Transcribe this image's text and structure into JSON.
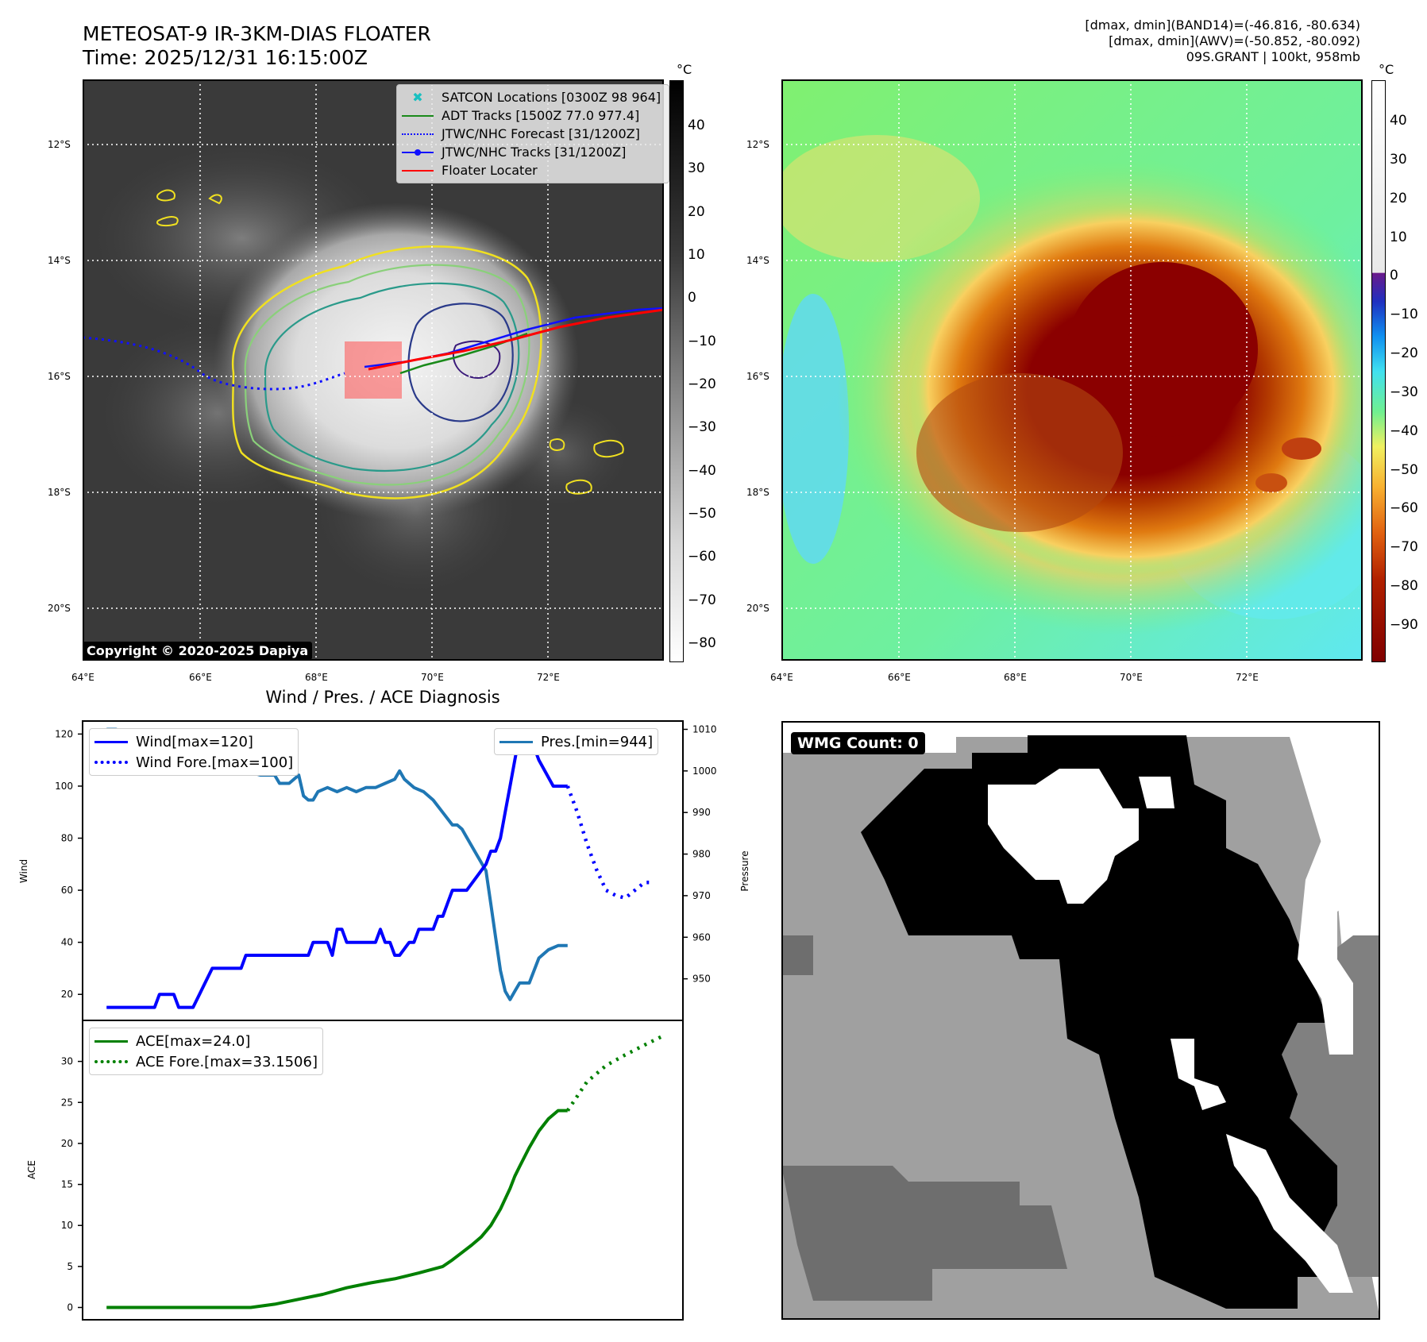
{
  "header": {
    "title_line1": "METEOSAT-9 IR-3KM-DIAS FLOATER",
    "title_line2": "Time: 2025/12/31 16:15:00Z",
    "info_line1": "[dmax, dmin](BAND14)=(-46.816, -80.634)",
    "info_line2": "[dmax, dmin](AWV)=(-50.852, -80.092)",
    "info_line3": "09S.GRANT | 100kt, 958mb"
  },
  "map_axes": {
    "lat_labels": [
      "12°S",
      "14°S",
      "16°S",
      "18°S",
      "20°S"
    ],
    "lon_labels": [
      "64°E",
      "66°E",
      "68°E",
      "70°E",
      "72°E"
    ]
  },
  "ir_panel": {
    "colorbar_unit": "°C",
    "colorbar_ticks": [
      "40",
      "30",
      "20",
      "10",
      "0",
      "−10",
      "−20",
      "−30",
      "−40",
      "−50",
      "−60",
      "−70",
      "−80"
    ],
    "legend": [
      {
        "label": "SATCON Locations [0300Z 98 964]",
        "color": "#19c0c0"
      },
      {
        "label": "ADT Tracks [1500Z 77.0 977.4]",
        "color": "#1a8a1a"
      },
      {
        "label": "JTWC/NHC Forecast [31/1200Z]",
        "color": "#1010ff"
      },
      {
        "label": "JTWC/NHC Tracks [31/1200Z]",
        "color": "#1010ff"
      },
      {
        "label": "Floater Locater",
        "color": "#ff0000"
      }
    ],
    "copyright": "Copyright © 2020-2025 Dapiya"
  },
  "color_panel": {
    "colorbar_unit": "°C",
    "colorbar_ticks": [
      "40",
      "30",
      "20",
      "10",
      "0",
      "−10",
      "−20",
      "−30",
      "−40",
      "−50",
      "−60",
      "−70",
      "−80",
      "−90"
    ]
  },
  "wmg": {
    "badge": "WMG Count: 0"
  },
  "chart_data": [
    {
      "type": "line",
      "title": "Wind / Pres. / ACE Diagnosis",
      "ylabel": "Wind",
      "ylabel_right": "Pressure",
      "ylim": [
        10,
        125
      ],
      "ylim_right": [
        940,
        1012
      ],
      "yticks": [
        "20",
        "40",
        "60",
        "80",
        "100",
        "120"
      ],
      "yticks_right": [
        "950",
        "960",
        "970",
        "980",
        "990",
        "1000",
        "1010"
      ],
      "series": [
        {
          "name": "Wind[max=120]",
          "color": "#0000ff",
          "style": "solid",
          "x": [
            0,
            5,
            10,
            11,
            14,
            15,
            17,
            18,
            22,
            23,
            28,
            29,
            36,
            37,
            42,
            43,
            46,
            47,
            48,
            49,
            50,
            51,
            56,
            57,
            58,
            59,
            60,
            61,
            63,
            64,
            65,
            66,
            68,
            69,
            70,
            71,
            72,
            73,
            74,
            75,
            79,
            80,
            81,
            82,
            83,
            84,
            85,
            86,
            87,
            88,
            89,
            90,
            93,
            94,
            95,
            96
          ],
          "values": [
            15,
            15,
            15,
            20,
            20,
            15,
            15,
            15,
            30,
            30,
            30,
            35,
            35,
            35,
            35,
            40,
            40,
            35,
            45,
            45,
            40,
            40,
            40,
            45,
            40,
            40,
            35,
            35,
            40,
            40,
            45,
            45,
            45,
            50,
            50,
            55,
            60,
            60,
            60,
            60,
            70,
            75,
            75,
            80,
            90,
            100,
            110,
            120,
            120,
            115,
            115,
            110,
            100,
            100,
            100,
            100
          ]
        },
        {
          "name": "Wind Fore.[max=100]",
          "color": "#0000ff",
          "style": "dotted",
          "x": [
            96,
            98,
            100,
            102,
            104,
            106,
            108,
            110,
            112,
            114
          ],
          "values": [
            100,
            90,
            78,
            68,
            60,
            58,
            57,
            60,
            63,
            63
          ]
        },
        {
          "name": "Pres.[min=944]",
          "color": "#1f77b4",
          "style": "solid",
          "x": [
            0,
            2,
            3,
            5,
            10,
            11,
            14,
            15,
            20,
            22,
            25,
            27,
            29,
            32,
            35,
            36,
            38,
            40,
            41,
            42,
            43,
            44,
            46,
            48,
            50,
            52,
            54,
            56,
            58,
            60,
            61,
            62,
            64,
            66,
            68,
            70,
            72,
            73,
            74,
            75,
            77,
            79,
            80,
            81,
            82,
            83,
            84,
            85,
            86,
            88,
            90,
            92,
            94,
            96
          ],
          "values": [
            1010,
            1010,
            1008,
            1006,
            1006,
            1004,
            1004,
            1003,
            1002,
            1001,
            1001,
            1000,
            1000,
            999,
            999,
            997,
            997,
            999,
            994,
            993,
            993,
            995,
            996,
            995,
            996,
            995,
            996,
            996,
            997,
            998,
            1000,
            998,
            996,
            995,
            993,
            990,
            987,
            987,
            986,
            984,
            980,
            976,
            968,
            960,
            952,
            947,
            945,
            947,
            949,
            949,
            955,
            957,
            958,
            958
          ]
        }
      ]
    },
    {
      "type": "line",
      "ylabel": "ACE",
      "ylim": [
        -1.5,
        35
      ],
      "yticks": [
        "0",
        "5",
        "10",
        "15",
        "20",
        "25",
        "30"
      ],
      "series": [
        {
          "name": "ACE[max=24.0]",
          "color": "#008000",
          "style": "solid",
          "x": [
            0,
            10,
            20,
            22,
            25,
            30,
            35,
            40,
            45,
            50,
            55,
            60,
            65,
            70,
            72,
            74,
            76,
            78,
            80,
            82,
            84,
            85,
            86,
            88,
            90,
            92,
            94,
            96
          ],
          "values": [
            0,
            0,
            0,
            0,
            0,
            0,
            0.4,
            1.0,
            1.6,
            2.4,
            3.0,
            3.5,
            4.2,
            5.0,
            5.8,
            6.7,
            7.6,
            8.6,
            10.0,
            12.0,
            14.5,
            16.0,
            17.2,
            19.5,
            21.5,
            23.0,
            24.0,
            24.0
          ]
        },
        {
          "name": "ACE Fore.[max=33.1506]",
          "color": "#008000",
          "style": "dotted",
          "x": [
            96,
            100,
            104,
            108,
            112,
            116
          ],
          "values": [
            24.0,
            27.5,
            29.5,
            30.8,
            32.0,
            33.1506
          ]
        }
      ]
    }
  ]
}
